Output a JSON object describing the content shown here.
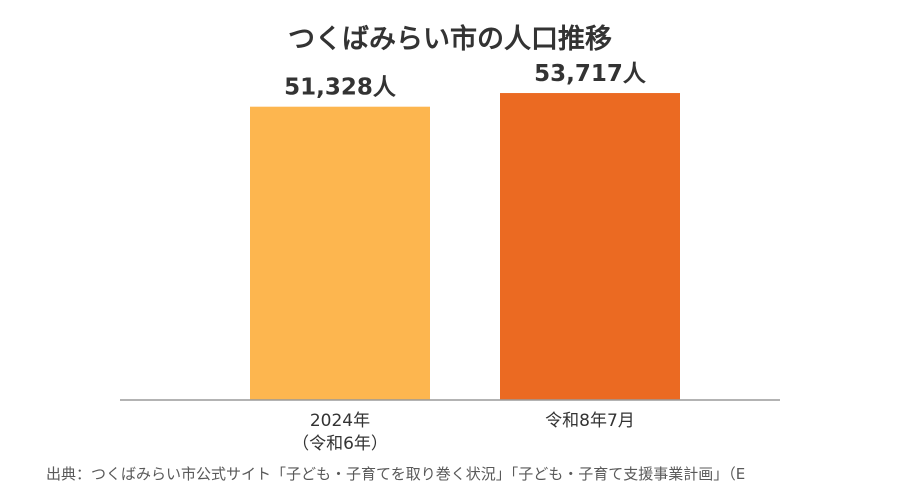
{
  "chart_data": {
    "type": "bar",
    "title": "つくばみらい市の人口推移",
    "categories": [
      "2024年\n（令和6年）",
      "令和8年7月"
    ],
    "values": [
      51328,
      53717
    ],
    "value_labels": [
      "51,328人",
      "53,717人"
    ],
    "colors": [
      "#FDB64F",
      "#EB6A22"
    ],
    "ylim": [
      0,
      56000
    ],
    "xlabel": "",
    "ylabel": "",
    "grid": false,
    "legend": "none"
  },
  "source": "出典：つくばみらい市公式サイト「子ども・子育てを取り巻く状況」「子ども・子育て支援事業計画」（E"
}
